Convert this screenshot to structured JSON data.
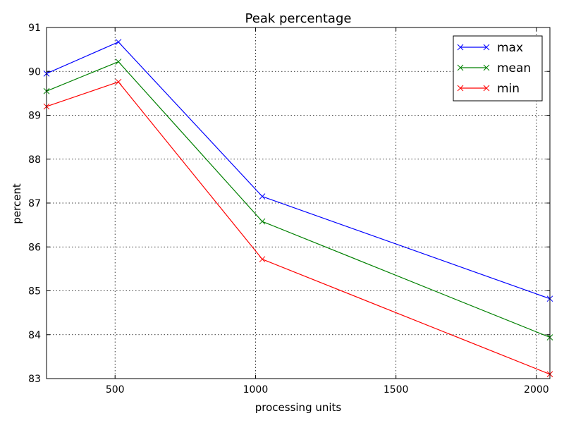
{
  "chart_data": {
    "type": "line",
    "title": "Peak percentage",
    "xlabel": "processing units",
    "ylabel": "percent",
    "xlim": [
      256,
      2048
    ],
    "ylim": [
      83,
      91
    ],
    "xticks": [
      500,
      1000,
      1500,
      2000
    ],
    "yticks": [
      83,
      84,
      85,
      86,
      87,
      88,
      89,
      90,
      91
    ],
    "grid": true,
    "legend": "top-right",
    "x": [
      256,
      512,
      1024,
      2048
    ],
    "series": [
      {
        "name": "max",
        "color": "#0000ff",
        "marker": "x",
        "values": [
          89.95,
          90.67,
          87.15,
          84.82
        ]
      },
      {
        "name": "mean",
        "color": "#008000",
        "marker": "x",
        "values": [
          89.55,
          90.22,
          86.58,
          83.94
        ]
      },
      {
        "name": "min",
        "color": "#ff0000",
        "marker": "x",
        "values": [
          89.2,
          89.76,
          85.72,
          83.1
        ]
      }
    ]
  }
}
